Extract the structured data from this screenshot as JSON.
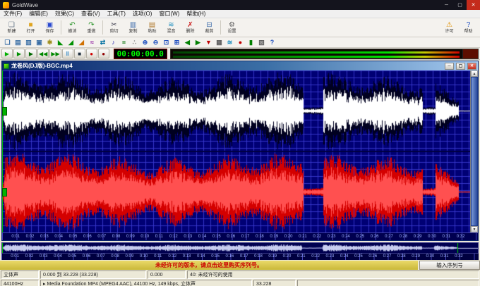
{
  "window": {
    "title": "GoldWave",
    "controls": {
      "minimize": "─",
      "maximize": "▢",
      "close": "✕"
    }
  },
  "menu": {
    "items": [
      "文件(F)",
      "编辑(E)",
      "效果(C)",
      "查看(V)",
      "工具(T)",
      "选项(O)",
      "窗口(W)",
      "帮助(H)"
    ]
  },
  "toolbar_main": {
    "items": [
      {
        "name": "new-file-button",
        "label": "新建",
        "glyph": "❏",
        "color": "#667788"
      },
      {
        "name": "open-file-button",
        "label": "打开",
        "glyph": "■",
        "color": "#e0a520"
      },
      {
        "name": "save-file-button",
        "label": "保存",
        "glyph": "▣",
        "color": "#2a4ad0"
      },
      {
        "sep": true
      },
      {
        "name": "undo-button",
        "label": "撤消",
        "glyph": "↶",
        "color": "#1f8f1f"
      },
      {
        "name": "redo-button",
        "label": "重做",
        "glyph": "↷",
        "color": "#1f8f1f"
      },
      {
        "sep": true
      },
      {
        "name": "cut-button",
        "label": "剪切",
        "glyph": "✂",
        "color": "#404050"
      },
      {
        "name": "copy-button",
        "label": "复制",
        "glyph": "▥",
        "color": "#3a6aaa"
      },
      {
        "name": "paste-button",
        "label": "粘贴",
        "glyph": "▤",
        "color": "#b07a30"
      },
      {
        "name": "mix-button",
        "label": "混音",
        "glyph": "≋",
        "color": "#2090c0"
      },
      {
        "name": "delete-button",
        "label": "删除",
        "glyph": "✗",
        "color": "#cc2020"
      },
      {
        "name": "trim-button",
        "label": "裁剪",
        "glyph": "⊟",
        "color": "#3a6aaa"
      },
      {
        "sep": true
      },
      {
        "name": "settings-button",
        "label": "设置",
        "glyph": "⚙",
        "color": "#606060"
      }
    ],
    "right_items": [
      {
        "name": "license-warning-button",
        "label": "许可",
        "glyph": "⚠",
        "color": "#e09000"
      },
      {
        "name": "help-button",
        "label": "帮助",
        "glyph": "?",
        "color": "#2050c0"
      }
    ]
  },
  "toolbar_effects": {
    "items": [
      {
        "name": "cascade-windows-icon",
        "glyph": "❏",
        "color": "#3a6ea5"
      },
      {
        "name": "tile-horizontal-icon",
        "glyph": "▤",
        "color": "#3a6ea5"
      },
      {
        "name": "tile-vertical-icon",
        "glyph": "▥",
        "color": "#3a6ea5"
      },
      {
        "name": "fit-window-icon",
        "glyph": "▣",
        "color": "#3a6ea5"
      },
      {
        "name": "file-info-icon",
        "glyph": "✱",
        "color": "#a09020"
      },
      {
        "name": "fade-in-icon",
        "glyph": "◣",
        "color": "#009000"
      },
      {
        "name": "fade-out-icon",
        "glyph": "◢",
        "color": "#009000"
      },
      {
        "name": "volume-shape-icon",
        "glyph": "◢",
        "color": "#d07000"
      },
      {
        "name": "echo-icon",
        "glyph": "≈",
        "color": "#9020a0"
      },
      {
        "name": "reverse-icon",
        "glyph": "⇄",
        "color": "#0070a0"
      },
      {
        "name": "pitch-icon",
        "glyph": "♪",
        "color": "#2020b0"
      },
      {
        "name": "equalizer-icon",
        "glyph": "≡",
        "color": "#007000"
      },
      {
        "name": "noise-reduction-icon",
        "glyph": "∴",
        "color": "#808080"
      },
      {
        "name": "zoom-in-icon",
        "glyph": "⊕",
        "color": "#2050c0"
      },
      {
        "name": "zoom-out-icon",
        "glyph": "⊖",
        "color": "#2050c0"
      },
      {
        "name": "zoom-selection-icon",
        "glyph": "⊡",
        "color": "#2050c0"
      },
      {
        "name": "zoom-all-icon",
        "glyph": "⊞",
        "color": "#2050c0"
      },
      {
        "name": "previous-zoom-icon",
        "glyph": "◀",
        "color": "#008000"
      },
      {
        "name": "next-zoom-icon",
        "glyph": "▶",
        "color": "#008000"
      },
      {
        "name": "drop-marker-icon",
        "glyph": "▼",
        "color": "#c00000"
      },
      {
        "name": "grid-toggle-icon",
        "glyph": "▦",
        "color": "#606060"
      },
      {
        "name": "mixer-icon",
        "glyph": "≋",
        "color": "#2090c0"
      },
      {
        "name": "record-settings-icon",
        "glyph": "●",
        "color": "#c00000"
      },
      {
        "name": "monitor-icon",
        "glyph": "▮",
        "color": "#008000"
      },
      {
        "name": "device-controls-icon",
        "glyph": "▧",
        "color": "#606060"
      },
      {
        "name": "context-help-icon",
        "glyph": "?",
        "color": "#2050c0"
      }
    ]
  },
  "transport": {
    "buttons": [
      {
        "name": "play-button",
        "glyph": "▶",
        "color": "#00b000"
      },
      {
        "name": "play-all-button",
        "glyph": "▶",
        "color": "#009000"
      },
      {
        "name": "play-loop-button",
        "glyph": "▶",
        "color": "#006800"
      },
      {
        "name": "rewind-button",
        "glyph": "◀◀",
        "color": "#008800"
      },
      {
        "name": "fast-forward-button",
        "glyph": "▶▶",
        "color": "#008800"
      },
      {
        "name": "pause-button",
        "glyph": "Ⅱ",
        "color": "#0070c0"
      },
      {
        "name": "stop-button",
        "glyph": "■",
        "color": "#203040"
      },
      {
        "name": "record-button",
        "glyph": "●",
        "color": "#d00000"
      },
      {
        "name": "record-new-button",
        "glyph": "●",
        "color": "#900000"
      }
    ],
    "time_display": "00:00:00.0"
  },
  "editor_window": {
    "title": "龙卷风(DJ版)-BGC.mp4",
    "controls": {
      "minimize": "─",
      "restore": "▢",
      "close": "✕"
    },
    "ruler_labels": [
      "0:01",
      "0:02",
      "0:03",
      "0:04",
      "0:05",
      "0:06",
      "0:07",
      "0:08",
      "0:09",
      "0:10",
      "0:11",
      "0:12",
      "0:13",
      "0:14",
      "0:15",
      "0:16",
      "0:17",
      "0:18",
      "0:19",
      "0:20",
      "0:21",
      "0:22",
      "0:23",
      "0:24",
      "0:25",
      "0:26",
      "0:27",
      "0:28",
      "0:29",
      "0:30",
      "0:31",
      "0:32"
    ]
  },
  "overview": {
    "ruler_labels": [
      "0:01",
      "0:02",
      "0:03",
      "0:04",
      "0:05",
      "0:06",
      "0:07",
      "0:08",
      "0:09",
      "0:10",
      "0:11",
      "0:12",
      "0:13",
      "0:14",
      "0:15",
      "0:16",
      "0:17",
      "0:18",
      "0:19",
      "0:20",
      "0:21",
      "0:22",
      "0:23",
      "0:24",
      "0:25",
      "0:26",
      "0:27",
      "0:28",
      "0:29",
      "0:30",
      "0:31",
      "0:32"
    ]
  },
  "waveform": {
    "duration_visible_s": 32.6,
    "total_length_s": 33.228,
    "audio_end_s": 31.8,
    "quiet_zones": [
      [
        20.95,
        22.35
      ],
      [
        29.3,
        30.15
      ]
    ],
    "left_channel_colors": {
      "peak": "#000020",
      "rms": "#ffffff"
    },
    "right_channel_colors": {
      "peak": "#d40000",
      "rms": "#ff5050"
    },
    "grid_background": "#000074",
    "grid_line": "#3c3cd2"
  },
  "license_bar": {
    "notice": "未经许可的版本，请点击这里购买序列号。",
    "button_label": "输入序列号"
  },
  "status_bar": {
    "row1": [
      "立体声",
      "0.000 到 33.228 (33.228)",
      "0.000",
      "40: 未经许可的使用"
    ],
    "row2": [
      "44100Hz",
      "▸ Media Foundation MP4 (MPEG4 AAC), 44100 Hz, 149 kbps, 立体声",
      "33.228",
      ""
    ]
  }
}
